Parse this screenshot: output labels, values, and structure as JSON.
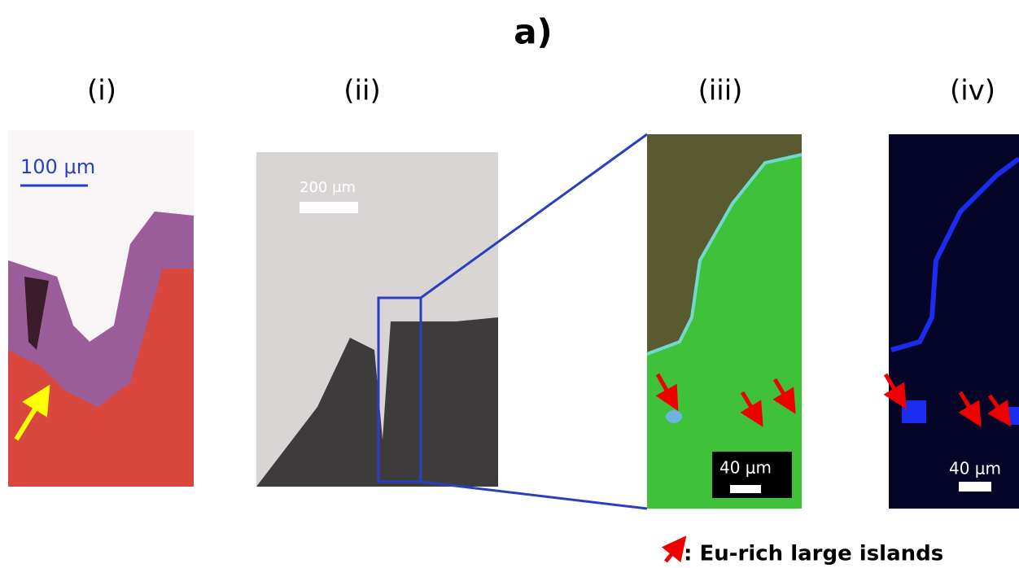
{
  "figure": {
    "label": "a)",
    "panels": [
      {
        "label": "(i)",
        "scale_bar": "100 μm"
      },
      {
        "label": "(ii)",
        "scale_bar": "200 μm"
      },
      {
        "label": "(iii)",
        "scale_bar": "40 μm"
      },
      {
        "label": "(iv)",
        "scale_bar": "40 μm"
      }
    ]
  },
  "legend": {
    "text": ": Eu-rich large islands"
  }
}
